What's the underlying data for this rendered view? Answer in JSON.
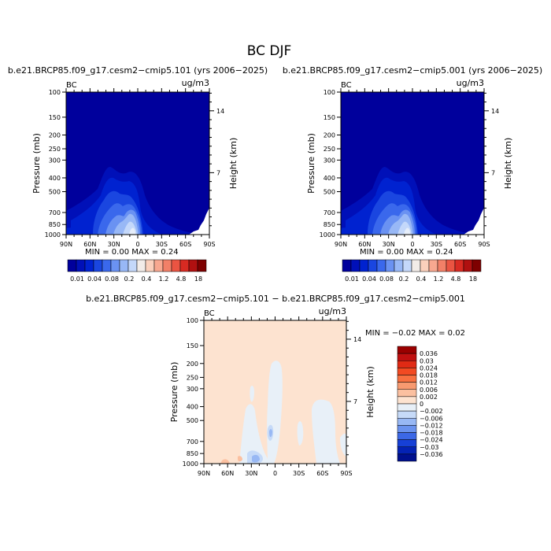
{
  "figure_title": "BC DJF",
  "colors": {
    "background_field": "#00009c",
    "diff_background": "#fde3d0",
    "positive_bias_hint": "red",
    "negative_bias_hint": "blue"
  },
  "chart_data": [
    {
      "type": "heatmap",
      "title": "b.e21.BRCP85.f09_g17.cesm2−cmip5.101 (yrs 2006−2025)",
      "variable_label": "BC",
      "units_label": "ug/m3",
      "xlabel": "",
      "ylabel": "Pressure (mb)",
      "y2label": "Height (km)",
      "x_ticks": [
        "90N",
        "60N",
        "30N",
        "0",
        "30S",
        "60S",
        "90S"
      ],
      "y_ticks": [
        "100",
        "150",
        "200",
        "250",
        "300",
        "400",
        "500",
        "700",
        "850",
        "1000"
      ],
      "y2_ticks": [
        "14",
        "7"
      ],
      "ylim": [
        100,
        1000
      ],
      "y_scale": "log",
      "stats": "MIN =    0.00   MAX =    0.24",
      "colorbar_labels": [
        "0.01",
        "0.04",
        "0.08",
        "0.2",
        "0.4",
        "1.2",
        "4.8",
        "18"
      ],
      "contour_levels": [
        0.01,
        0.02,
        0.04,
        0.06,
        0.08,
        0.1,
        0.2,
        0.3,
        0.4,
        0.8,
        1.2,
        2.4,
        4.8,
        9,
        18
      ],
      "colorbar_colors": [
        "#00009c",
        "#0010b8",
        "#0022d0",
        "#1a46e0",
        "#3a68ec",
        "#6a92f2",
        "#98b8f6",
        "#c4d8fa",
        "#f2ece8",
        "#fbd0bc",
        "#f8a890",
        "#f28068",
        "#ea5442",
        "#d82a22",
        "#b01010",
        "#7e0000"
      ]
    },
    {
      "type": "heatmap",
      "title": "b.e21.BRCP85.f09_g17.cesm2−cmip5.001 (yrs 2006−2025)",
      "variable_label": "BC",
      "units_label": "ug/m3",
      "xlabel": "",
      "ylabel": "Pressure (mb)",
      "y2label": "Height (km)",
      "x_ticks": [
        "90N",
        "60N",
        "30N",
        "0",
        "30S",
        "60S",
        "90S"
      ],
      "y_ticks": [
        "100",
        "150",
        "200",
        "250",
        "300",
        "400",
        "500",
        "700",
        "850",
        "1000"
      ],
      "y2_ticks": [
        "14",
        "7"
      ],
      "ylim": [
        100,
        1000
      ],
      "y_scale": "log",
      "stats": "MIN =    0.00   MAX =    0.24",
      "colorbar_labels": [
        "0.01",
        "0.04",
        "0.08",
        "0.2",
        "0.4",
        "1.2",
        "4.8",
        "18"
      ],
      "contour_levels": [
        0.01,
        0.02,
        0.04,
        0.06,
        0.08,
        0.1,
        0.2,
        0.3,
        0.4,
        0.8,
        1.2,
        2.4,
        4.8,
        9,
        18
      ],
      "colorbar_colors": [
        "#00009c",
        "#0010b8",
        "#0022d0",
        "#1a46e0",
        "#3a68ec",
        "#6a92f2",
        "#98b8f6",
        "#c4d8fa",
        "#f2ece8",
        "#fbd0bc",
        "#f8a890",
        "#f28068",
        "#ea5442",
        "#d82a22",
        "#b01010",
        "#7e0000"
      ]
    },
    {
      "type": "heatmap",
      "title": "b.e21.BRCP85.f09_g17.cesm2−cmip5.101 − b.e21.BRCP85.f09_g17.cesm2−cmip5.001",
      "variable_label": "BC",
      "units_label": "ug/m3",
      "xlabel": "",
      "ylabel": "Pressure (mb)",
      "y2label": "Height (km)",
      "x_ticks": [
        "90N",
        "60N",
        "30N",
        "0",
        "30S",
        "60S",
        "90S"
      ],
      "y_ticks": [
        "100",
        "150",
        "200",
        "250",
        "300",
        "400",
        "500",
        "700",
        "850",
        "1000"
      ],
      "y2_ticks": [
        "14",
        "7"
      ],
      "ylim": [
        100,
        1000
      ],
      "y_scale": "log",
      "stats": "MIN =   −0.02   MAX =    0.02",
      "colorbar_labels": [
        "0.036",
        "0.03",
        "0.024",
        "0.018",
        "0.012",
        "0.006",
        "0.002",
        "0",
        "−0.002",
        "−0.006",
        "−0.012",
        "−0.018",
        "−0.024",
        "−0.03",
        "−0.036"
      ],
      "colorbar_colors": [
        "#9a0000",
        "#c01010",
        "#e02a14",
        "#f24a22",
        "#f87040",
        "#f89a70",
        "#fbc0a0",
        "#fde3d0",
        "#e8f0f8",
        "#c6daf8",
        "#98b8f4",
        "#6a92ee",
        "#3c68e6",
        "#1640d6",
        "#0422b4",
        "#00108e"
      ]
    }
  ]
}
